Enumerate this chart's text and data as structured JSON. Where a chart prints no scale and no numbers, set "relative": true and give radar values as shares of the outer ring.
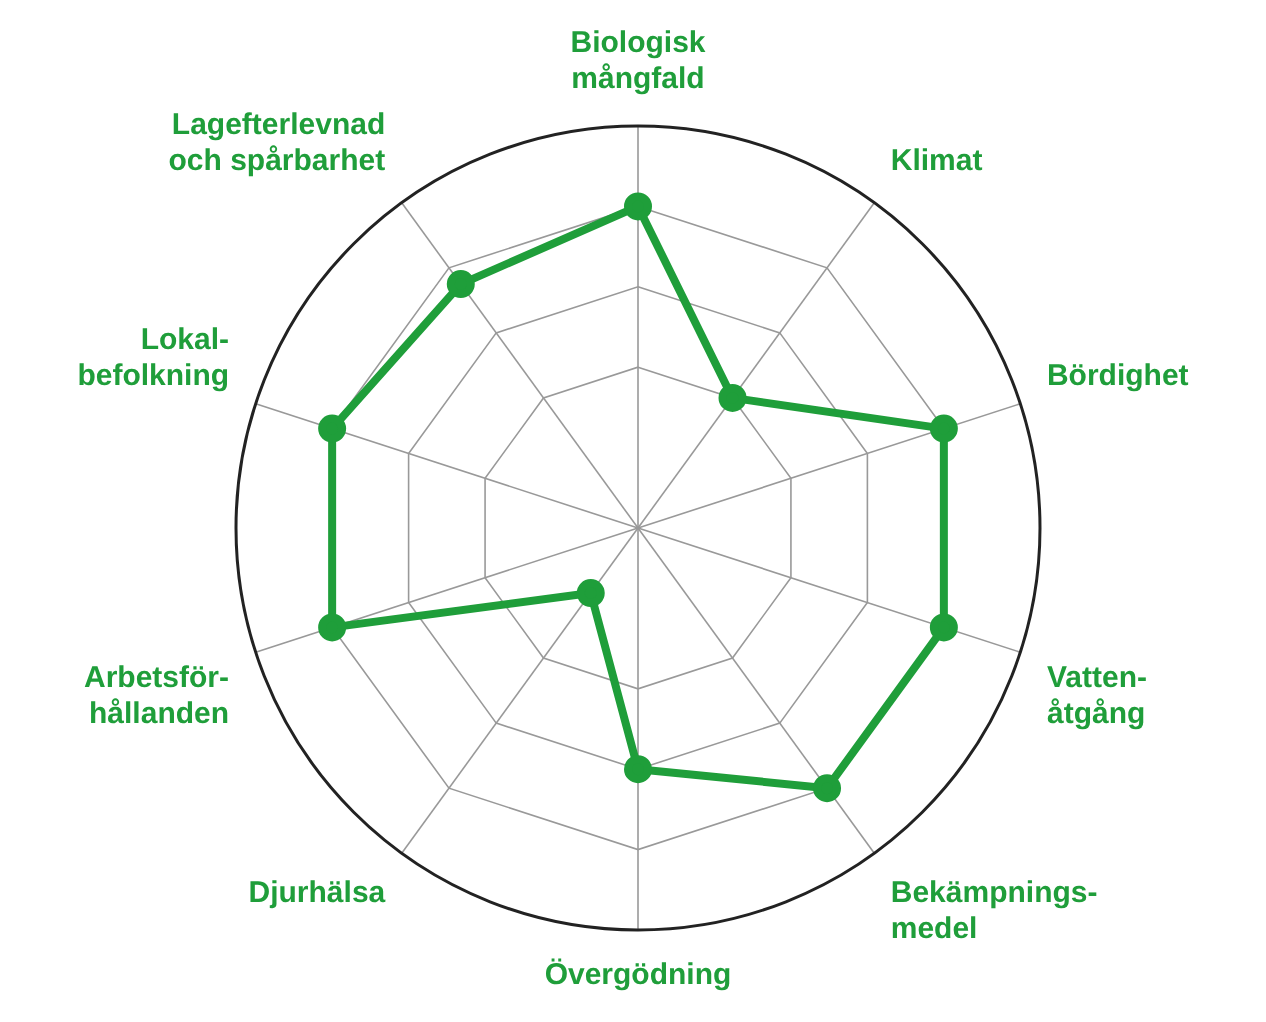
{
  "chart_data": {
    "type": "radar",
    "relative": true,
    "categories": [
      "Biologisk\nmångfald",
      "Klimat",
      "Bördighet",
      "Vatten-\nåtgång",
      "Bekämpnings-\nmedel",
      "Övergödning",
      "Djurhälsa",
      "Arbetsför-\nhållanden",
      "Lokal-\nbefolkning",
      "Lagefterlevnad\noch spårbarhet"
    ],
    "series": [
      {
        "color": "#1f9e3a",
        "values": [
          0.8,
          0.4,
          0.8,
          0.8,
          0.8,
          0.6,
          0.2,
          0.8,
          0.8,
          0.75
        ]
      }
    ],
    "marker": "circle",
    "legend": false
  }
}
